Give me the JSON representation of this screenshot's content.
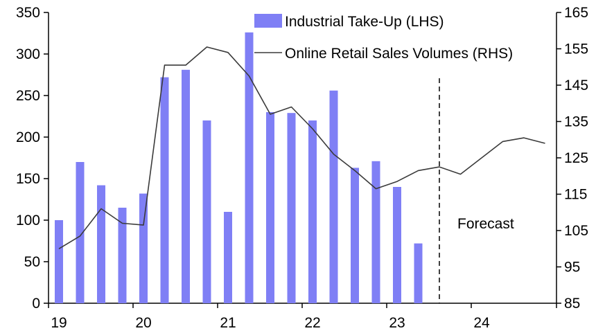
{
  "chart_data": {
    "type": "bar+line",
    "title": "",
    "x_tick_labels": [
      "19",
      "20",
      "21",
      "22",
      "23",
      "24"
    ],
    "left_axis": {
      "ylim": [
        0,
        350
      ],
      "ticks": [
        0,
        50,
        100,
        150,
        200,
        250,
        300,
        350
      ]
    },
    "right_axis": {
      "ylim": [
        85,
        165
      ],
      "ticks": [
        85,
        95,
        105,
        115,
        125,
        135,
        145,
        155,
        165
      ]
    },
    "series": [
      {
        "name": "Industrial Take-Up (LHS)",
        "kind": "bar",
        "axis": "left",
        "color": "#7f7ff5",
        "quarters": [
          "2019 Q1",
          "2019 Q2",
          "2019 Q3",
          "2019 Q4",
          "2020 Q1",
          "2020 Q2",
          "2020 Q3",
          "2020 Q4",
          "2021 Q1",
          "2021 Q2",
          "2021 Q3",
          "2021 Q4",
          "2022 Q1",
          "2022 Q2",
          "2022 Q3",
          "2022 Q4",
          "2023 Q1",
          "2023 Q2"
        ],
        "values": [
          100,
          170,
          142,
          115,
          132,
          272,
          281,
          220,
          110,
          326,
          230,
          229,
          220,
          256,
          163,
          171,
          140,
          72
        ]
      },
      {
        "name": "Online Retail Sales Volumes (RHS)",
        "kind": "line",
        "axis": "right",
        "color": "#3a3a3a",
        "quarters": [
          "2019 Q1",
          "2019 Q2",
          "2019 Q3",
          "2019 Q4",
          "2020 Q1",
          "2020 Q2",
          "2020 Q3",
          "2020 Q4",
          "2021 Q1",
          "2021 Q2",
          "2021 Q3",
          "2021 Q4",
          "2022 Q1",
          "2022 Q2",
          "2022 Q3",
          "2022 Q4",
          "2023 Q1",
          "2023 Q2",
          "2023 Q3",
          "2023 Q4",
          "2024 Q1",
          "2024 Q2",
          "2024 Q3",
          "2024 Q4"
        ],
        "values": [
          100,
          103.5,
          111,
          107,
          106.5,
          150.5,
          150.5,
          155.5,
          154,
          147.5,
          137,
          139,
          133,
          126,
          121.5,
          116.5,
          118.5,
          121.5,
          122.5,
          120.5,
          125,
          129.5,
          130.5,
          129
        ]
      }
    ],
    "forecast_divider_x": "2023 Q3",
    "annotations": [
      {
        "text": "Forecast"
      }
    ],
    "legend": "top-right",
    "grid": false
  }
}
